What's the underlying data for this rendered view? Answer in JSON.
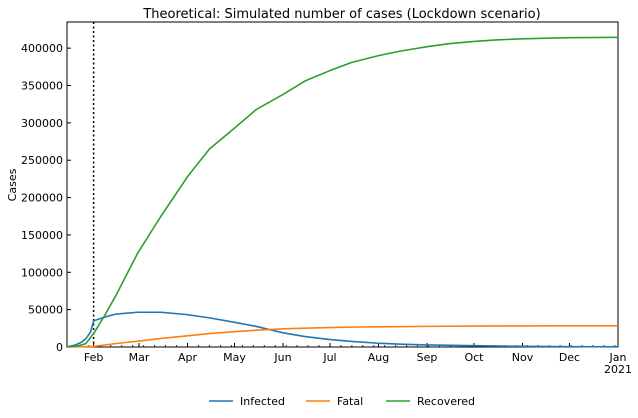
{
  "chart_data": {
    "type": "line",
    "title": "Theoretical: Simulated number of cases (Lockdown scenario)",
    "xlabel": "",
    "ylabel": "Cases",
    "x_range": [
      "2020-01-15",
      "2021-01-01"
    ],
    "ylim": [
      0,
      435000
    ],
    "x_ticks": [
      {
        "date": "2020-02-01",
        "label": "Feb"
      },
      {
        "date": "2020-03-01",
        "label": "Mar"
      },
      {
        "date": "2020-04-01",
        "label": "Apr"
      },
      {
        "date": "2020-05-01",
        "label": "May"
      },
      {
        "date": "2020-06-01",
        "label": "Jun"
      },
      {
        "date": "2020-07-01",
        "label": "Jul"
      },
      {
        "date": "2020-08-01",
        "label": "Aug"
      },
      {
        "date": "2020-09-01",
        "label": "Sep"
      },
      {
        "date": "2020-10-01",
        "label": "Oct"
      },
      {
        "date": "2020-11-01",
        "label": "Nov"
      },
      {
        "date": "2020-12-01",
        "label": "Dec"
      },
      {
        "date": "2021-01-01",
        "label": "Jan"
      }
    ],
    "year_label": "2021",
    "y_ticks": [
      0,
      50000,
      100000,
      150000,
      200000,
      250000,
      300000,
      350000,
      400000
    ],
    "vline": {
      "date": "2020-02-01",
      "style": "dotted",
      "color": "#000000"
    },
    "grid": false,
    "legend_position": "bottom-center",
    "series": [
      {
        "name": "Infected",
        "color": "#1f77b4",
        "points": [
          [
            "2020-01-15",
            300
          ],
          [
            "2020-01-20",
            2500
          ],
          [
            "2020-01-24",
            6000
          ],
          [
            "2020-01-27",
            11000
          ],
          [
            "2020-01-30",
            20000
          ],
          [
            "2020-02-01",
            35000
          ],
          [
            "2020-02-08",
            40000
          ],
          [
            "2020-02-15",
            44000
          ],
          [
            "2020-02-29",
            46500
          ],
          [
            "2020-03-15",
            46500
          ],
          [
            "2020-03-31",
            43500
          ],
          [
            "2020-04-15",
            39000
          ],
          [
            "2020-05-01",
            33000
          ],
          [
            "2020-05-15",
            27500
          ],
          [
            "2020-06-01",
            19000
          ],
          [
            "2020-06-15",
            14000
          ],
          [
            "2020-07-01",
            10000
          ],
          [
            "2020-07-15",
            7500
          ],
          [
            "2020-08-01",
            5000
          ],
          [
            "2020-08-15",
            3800
          ],
          [
            "2020-09-01",
            2800
          ],
          [
            "2020-10-01",
            1700
          ],
          [
            "2020-11-01",
            900
          ],
          [
            "2020-12-01",
            500
          ],
          [
            "2021-01-01",
            300
          ]
        ]
      },
      {
        "name": "Fatal",
        "color": "#ff7f0e",
        "points": [
          [
            "2020-01-15",
            0
          ],
          [
            "2020-02-01",
            800
          ],
          [
            "2020-02-15",
            4500
          ],
          [
            "2020-03-01",
            8000
          ],
          [
            "2020-03-15",
            11500
          ],
          [
            "2020-04-01",
            15000
          ],
          [
            "2020-04-15",
            18000
          ],
          [
            "2020-05-01",
            20500
          ],
          [
            "2020-05-15",
            22500
          ],
          [
            "2020-06-01",
            24300
          ],
          [
            "2020-06-15",
            25200
          ],
          [
            "2020-07-01",
            26000
          ],
          [
            "2020-07-15",
            26600
          ],
          [
            "2020-08-01",
            27000
          ],
          [
            "2020-09-01",
            27600
          ],
          [
            "2020-10-01",
            28000
          ],
          [
            "2020-11-01",
            28200
          ],
          [
            "2020-12-01",
            28300
          ],
          [
            "2021-01-01",
            28400
          ]
        ]
      },
      {
        "name": "Recovered",
        "color": "#2ca02c",
        "points": [
          [
            "2020-01-15",
            0
          ],
          [
            "2020-01-22",
            1500
          ],
          [
            "2020-01-27",
            4500
          ],
          [
            "2020-02-01",
            18000
          ],
          [
            "2020-02-08",
            42000
          ],
          [
            "2020-02-15",
            68000
          ],
          [
            "2020-02-29",
            125000
          ],
          [
            "2020-03-15",
            175000
          ],
          [
            "2020-04-01",
            228000
          ],
          [
            "2020-04-15",
            265000
          ],
          [
            "2020-05-01",
            293000
          ],
          [
            "2020-05-15",
            318000
          ],
          [
            "2020-06-01",
            338000
          ],
          [
            "2020-06-15",
            356000
          ],
          [
            "2020-07-01",
            370000
          ],
          [
            "2020-07-15",
            381000
          ],
          [
            "2020-08-01",
            390000
          ],
          [
            "2020-08-15",
            396000
          ],
          [
            "2020-09-01",
            402000
          ],
          [
            "2020-09-15",
            406000
          ],
          [
            "2020-10-01",
            409000
          ],
          [
            "2020-10-15",
            411000
          ],
          [
            "2020-11-01",
            412500
          ],
          [
            "2020-12-01",
            414000
          ],
          [
            "2021-01-01",
            414500
          ]
        ]
      }
    ]
  }
}
